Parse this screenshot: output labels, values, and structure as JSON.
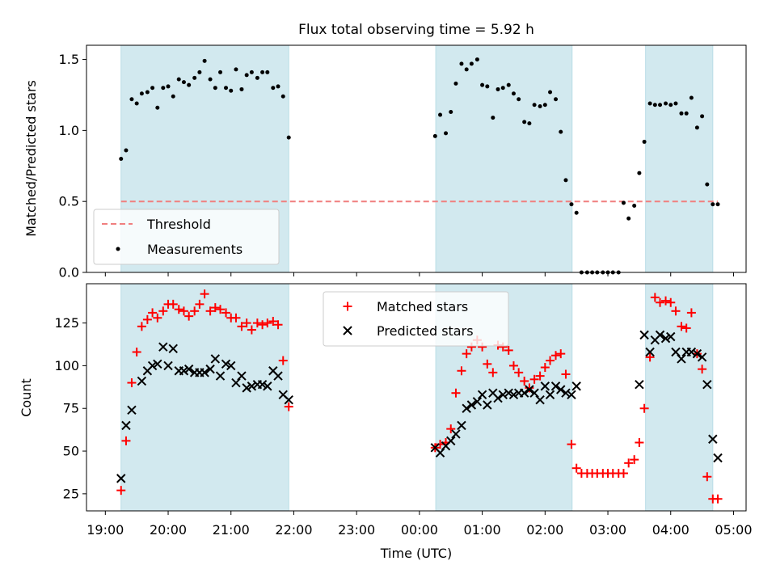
{
  "title": "Flux total observing time = 5.92 h",
  "chart_data": [
    {
      "type": "scatter",
      "panel": "top",
      "ylabel": "Matched/Predicted stars",
      "xlabel": "",
      "x_unit": "hours since 19:00 UTC",
      "xlim": [
        18.7,
        29.2
      ],
      "ylim": [
        0,
        1.6
      ],
      "yticks": [
        0.0,
        0.5,
        1.0,
        1.5
      ],
      "ytick_labels": [
        "0.0",
        "0.5",
        "1.0",
        "1.5"
      ],
      "grid": false,
      "legend_position": "lower-left",
      "shaded_intervals_hours": [
        [
          19.25,
          21.92
        ],
        [
          24.26,
          26.43
        ],
        [
          27.6,
          28.67
        ]
      ],
      "shade_color": "#d2e9ef",
      "threshold": {
        "name": "Threshold",
        "value": 0.5,
        "color": "#f07f7f"
      },
      "series": [
        {
          "name": "Measurements",
          "color": "#000000",
          "x": [
            19.25,
            19.33,
            19.42,
            19.5,
            19.58,
            19.67,
            19.75,
            19.83,
            19.92,
            20.0,
            20.08,
            20.17,
            20.25,
            20.33,
            20.42,
            20.5,
            20.58,
            20.67,
            20.75,
            20.83,
            20.92,
            21.0,
            21.08,
            21.17,
            21.25,
            21.33,
            21.42,
            21.5,
            21.58,
            21.67,
            21.75,
            21.83,
            21.92,
            24.25,
            24.33,
            24.42,
            24.5,
            24.58,
            24.67,
            24.75,
            24.83,
            24.92,
            25.0,
            25.08,
            25.17,
            25.25,
            25.33,
            25.42,
            25.5,
            25.58,
            25.67,
            25.75,
            25.83,
            25.92,
            26.0,
            26.08,
            26.17,
            26.25,
            26.33,
            26.42,
            26.5,
            26.58,
            26.67,
            26.75,
            26.83,
            26.92,
            27.0,
            27.08,
            27.17,
            27.25,
            27.33,
            27.42,
            27.5,
            27.58,
            27.67,
            27.75,
            27.83,
            27.92,
            28.0,
            28.08,
            28.17,
            28.25,
            28.33,
            28.42,
            28.5,
            28.58,
            28.67,
            28.75
          ],
          "y": [
            0.8,
            0.86,
            1.22,
            1.19,
            1.26,
            1.27,
            1.3,
            1.16,
            1.3,
            1.31,
            1.24,
            1.36,
            1.34,
            1.32,
            1.37,
            1.41,
            1.49,
            1.36,
            1.3,
            1.41,
            1.3,
            1.28,
            1.43,
            1.29,
            1.39,
            1.41,
            1.37,
            1.41,
            1.41,
            1.3,
            1.31,
            1.24,
            0.95,
            0.96,
            1.11,
            0.98,
            1.13,
            1.33,
            1.47,
            1.43,
            1.47,
            1.5,
            1.32,
            1.31,
            1.09,
            1.29,
            1.3,
            1.32,
            1.26,
            1.22,
            1.06,
            1.05,
            1.18,
            1.17,
            1.18,
            1.27,
            1.22,
            0.99,
            0.65,
            0.48,
            0.42,
            0.0,
            0.0,
            0.0,
            0.0,
            0.0,
            0.0,
            0.0,
            0.0,
            0.49,
            0.38,
            0.47,
            0.7,
            0.92,
            1.19,
            1.18,
            1.18,
            1.19,
            1.18,
            1.19,
            1.12,
            1.12,
            1.23,
            1.02,
            1.1,
            0.62,
            0.48,
            0.48
          ]
        }
      ]
    },
    {
      "type": "scatter",
      "panel": "bottom",
      "xlabel": "Time (UTC)",
      "ylabel": "Count",
      "x_unit": "hours since 19:00 UTC",
      "xlim": [
        18.7,
        29.2
      ],
      "ylim": [
        15,
        148
      ],
      "xticks": [
        19,
        20,
        21,
        22,
        23,
        24,
        25,
        26,
        27,
        28,
        29
      ],
      "xtick_labels": [
        "19:00",
        "20:00",
        "21:00",
        "22:00",
        "23:00",
        "00:00",
        "01:00",
        "02:00",
        "03:00",
        "04:00",
        "05:00"
      ],
      "yticks": [
        25,
        50,
        75,
        100,
        125
      ],
      "ytick_labels": [
        "25",
        "50",
        "75",
        "100",
        "125"
      ],
      "grid": false,
      "legend_position": "upper-center",
      "shaded_intervals_hours": [
        [
          19.25,
          21.92
        ],
        [
          24.26,
          26.43
        ],
        [
          27.6,
          28.67
        ]
      ],
      "shade_color": "#d2e9ef",
      "series": [
        {
          "name": "Matched stars",
          "marker": "+",
          "color": "#ff0000",
          "x": [
            19.25,
            19.33,
            19.42,
            19.5,
            19.58,
            19.67,
            19.75,
            19.83,
            19.92,
            20.0,
            20.08,
            20.17,
            20.25,
            20.33,
            20.42,
            20.5,
            20.58,
            20.67,
            20.75,
            20.83,
            20.92,
            21.0,
            21.08,
            21.17,
            21.25,
            21.33,
            21.42,
            21.5,
            21.58,
            21.67,
            21.75,
            21.83,
            21.92,
            24.25,
            24.33,
            24.42,
            24.5,
            24.58,
            24.67,
            24.75,
            24.83,
            24.92,
            25.0,
            25.08,
            25.17,
            25.25,
            25.33,
            25.42,
            25.5,
            25.58,
            25.67,
            25.75,
            25.83,
            25.92,
            26.0,
            26.08,
            26.17,
            26.25,
            26.33,
            26.42,
            26.5,
            26.58,
            26.67,
            26.75,
            26.83,
            26.92,
            27.0,
            27.08,
            27.17,
            27.25,
            27.33,
            27.42,
            27.5,
            27.58,
            27.67,
            27.75,
            27.83,
            27.92,
            28.0,
            28.08,
            28.17,
            28.25,
            28.33,
            28.42,
            28.5,
            28.58,
            28.67,
            28.75
          ],
          "y": [
            27,
            56,
            90,
            108,
            123,
            127,
            131,
            128,
            132,
            136,
            136,
            133,
            132,
            129,
            132,
            136,
            142,
            132,
            134,
            133,
            131,
            128,
            128,
            123,
            125,
            121,
            125,
            124,
            125,
            126,
            124,
            103,
            76,
            52,
            54,
            55,
            63,
            84,
            97,
            107,
            111,
            115,
            111,
            101,
            96,
            112,
            111,
            109,
            100,
            96,
            91,
            87,
            92,
            94,
            99,
            103,
            106,
            107,
            95,
            54,
            40,
            37,
            37,
            37,
            37,
            37,
            37,
            37,
            37,
            37,
            43,
            45,
            55,
            75,
            105,
            140,
            137,
            138,
            137,
            132,
            123,
            122,
            131,
            107,
            98,
            35,
            22,
            22
          ]
        },
        {
          "name": "Predicted stars",
          "marker": "x",
          "color": "#000000",
          "x": [
            19.25,
            19.33,
            19.42,
            19.58,
            19.67,
            19.75,
            19.83,
            19.92,
            20.0,
            20.08,
            20.17,
            20.25,
            20.33,
            20.42,
            20.5,
            20.58,
            20.67,
            20.75,
            20.83,
            20.92,
            21.0,
            21.08,
            21.17,
            21.25,
            21.33,
            21.42,
            21.5,
            21.58,
            21.67,
            21.75,
            21.83,
            21.92,
            24.25,
            24.33,
            24.42,
            24.5,
            24.58,
            24.67,
            24.75,
            24.83,
            24.92,
            25.0,
            25.08,
            25.17,
            25.25,
            25.33,
            25.42,
            25.5,
            25.58,
            25.67,
            25.75,
            25.83,
            25.92,
            26.0,
            26.08,
            26.17,
            26.25,
            26.33,
            26.42,
            26.5,
            27.5,
            27.58,
            27.67,
            27.75,
            27.83,
            27.92,
            28.0,
            28.08,
            28.17,
            28.25,
            28.33,
            28.42,
            28.5,
            28.58,
            28.67,
            28.75
          ],
          "y": [
            34,
            65,
            74,
            91,
            97,
            100,
            101,
            111,
            100,
            110,
            97,
            97,
            98,
            96,
            96,
            96,
            98,
            104,
            94,
            101,
            100,
            90,
            94,
            87,
            88,
            89,
            89,
            88,
            97,
            94,
            83,
            80,
            52,
            49,
            53,
            56,
            60,
            65,
            75,
            77,
            79,
            83,
            77,
            84,
            81,
            83,
            84,
            83,
            84,
            84,
            86,
            84,
            80,
            88,
            83,
            88,
            86,
            84,
            83,
            88,
            89,
            118,
            108,
            115,
            118,
            116,
            117,
            108,
            104,
            108,
            108,
            107,
            105,
            89,
            57,
            46
          ]
        }
      ]
    }
  ]
}
